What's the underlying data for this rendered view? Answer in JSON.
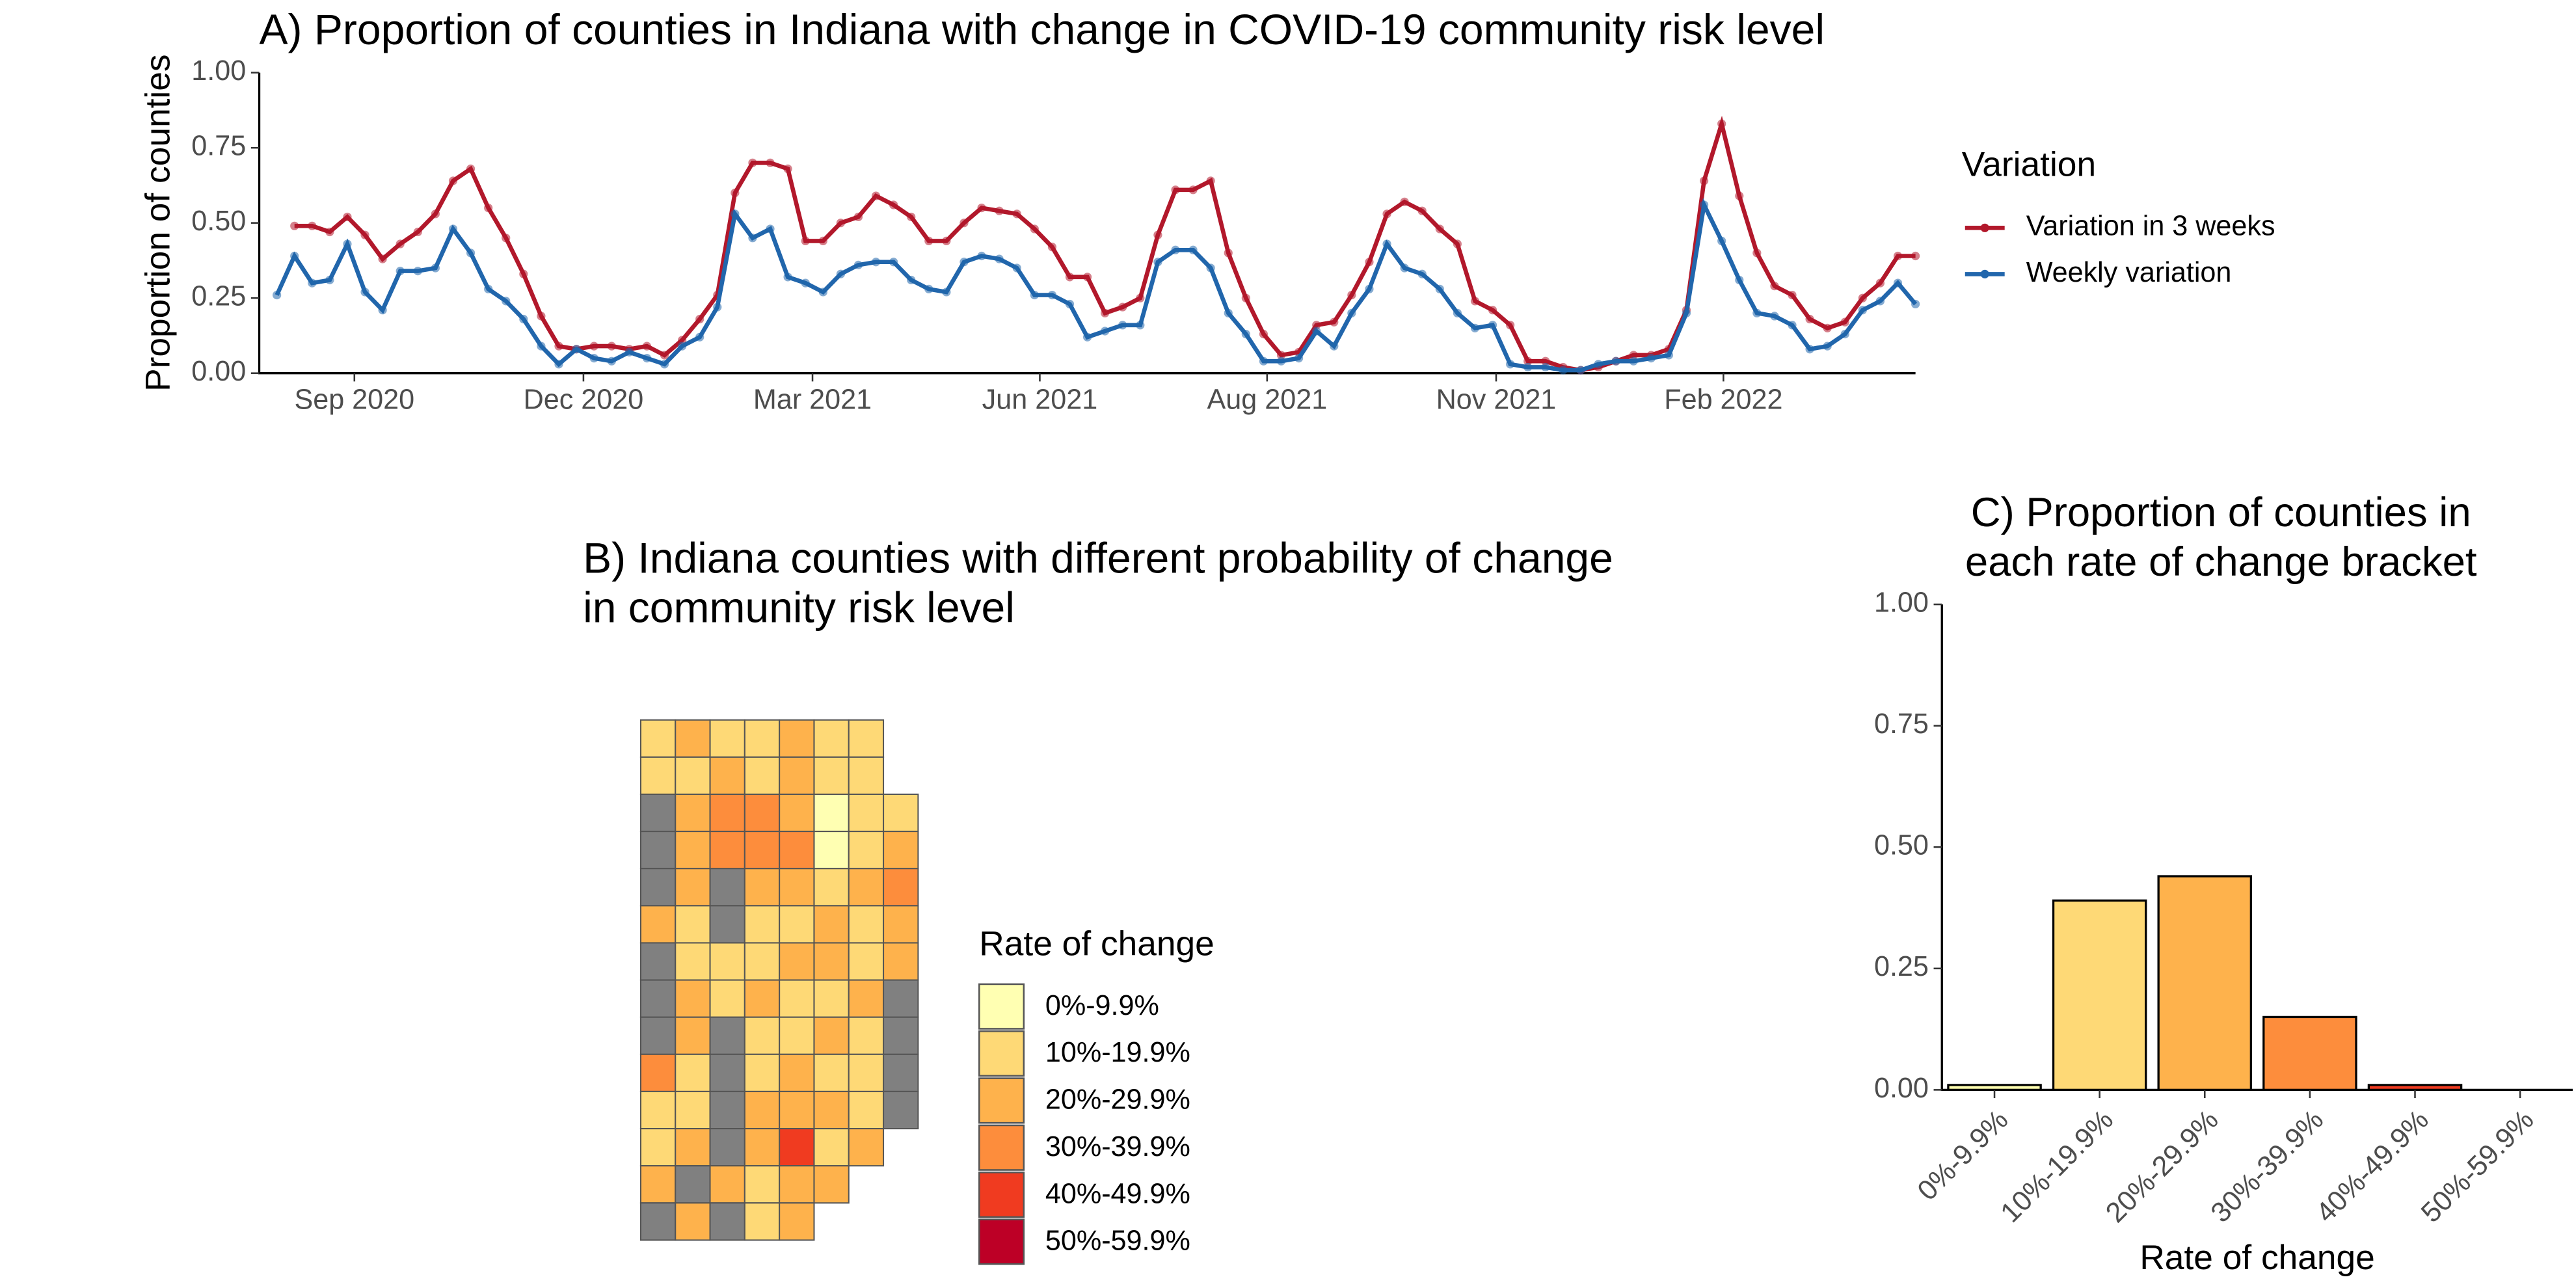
{
  "chart_data": [
    {
      "type": "line",
      "title": "A) Proportion of counties in Indiana with change in COVID-19 community risk level",
      "ylabel": "Proportion of counties",
      "legend_title": "Variation",
      "legend_position": "right",
      "x": [
        0,
        1,
        2,
        3,
        4,
        5,
        6,
        7,
        8,
        9,
        10,
        11,
        12,
        13,
        14,
        15,
        16,
        17,
        18,
        19,
        20,
        21,
        22,
        23,
        24,
        25,
        26,
        27,
        28,
        29,
        30,
        31,
        32,
        33,
        34,
        35,
        36,
        37,
        38,
        39,
        40,
        41,
        42,
        43,
        44,
        45,
        46,
        47,
        48,
        49,
        50,
        51,
        52,
        53,
        54,
        55,
        56,
        57,
        58,
        59,
        60,
        61,
        62,
        63,
        64,
        65,
        66,
        67,
        68,
        69,
        70,
        71,
        72,
        73,
        74,
        75,
        76,
        77,
        78,
        79,
        80,
        81,
        82,
        83,
        84,
        85,
        86,
        87,
        88,
        89,
        90,
        91,
        92,
        93
      ],
      "xlim": [
        -1,
        93
      ],
      "xticks": [
        {
          "value": 4.4,
          "label": "Sep 2020"
        },
        {
          "value": 17.4,
          "label": "Dec 2020"
        },
        {
          "value": 30.4,
          "label": "Mar 2021"
        },
        {
          "value": 43.3,
          "label": "Jun 2021"
        },
        {
          "value": 56.2,
          "label": "Aug 2021"
        },
        {
          "value": 69.2,
          "label": "Nov 2021"
        },
        {
          "value": 82.1,
          "label": "Feb 2022"
        }
      ],
      "ylim": [
        0,
        1
      ],
      "yticks": [
        {
          "value": 0,
          "label": "0.00"
        },
        {
          "value": 0.25,
          "label": "0.25"
        },
        {
          "value": 0.5,
          "label": "0.50"
        },
        {
          "value": 0.75,
          "label": "0.75"
        },
        {
          "value": 1,
          "label": "1.00"
        }
      ],
      "series": [
        {
          "name": "Variation in 3 weeks",
          "color": "#b2182b",
          "values": [
            null,
            0.49,
            0.49,
            0.47,
            0.52,
            0.46,
            0.38,
            0.43,
            0.47,
            0.53,
            0.64,
            0.68,
            0.55,
            0.45,
            0.33,
            0.19,
            0.09,
            0.08,
            0.09,
            0.09,
            0.08,
            0.09,
            0.06,
            0.11,
            0.18,
            0.26,
            0.6,
            0.7,
            0.7,
            0.68,
            0.44,
            0.44,
            0.5,
            0.52,
            0.59,
            0.56,
            0.52,
            0.44,
            0.44,
            0.5,
            0.55,
            0.54,
            0.53,
            0.48,
            0.42,
            0.32,
            0.32,
            0.2,
            0.22,
            0.25,
            0.46,
            0.61,
            0.61,
            0.64,
            0.4,
            0.25,
            0.13,
            0.06,
            0.07,
            0.16,
            0.17,
            0.26,
            0.37,
            0.53,
            0.57,
            0.54,
            0.48,
            0.43,
            0.24,
            0.21,
            0.16,
            0.04,
            0.04,
            0.02,
            0.01,
            0.02,
            0.04,
            0.06,
            0.06,
            0.08,
            0.21,
            0.64,
            0.83,
            0.59,
            0.4,
            0.29,
            0.26,
            0.18,
            0.15,
            0.17,
            0.25,
            0.3,
            0.39,
            0.39
          ]
        },
        {
          "name": "Weekly variation",
          "color": "#2166ac",
          "values": [
            0.26,
            0.39,
            0.3,
            0.31,
            0.43,
            0.27,
            0.21,
            0.34,
            0.34,
            0.35,
            0.48,
            0.4,
            0.28,
            0.24,
            0.18,
            0.09,
            0.03,
            0.08,
            0.05,
            0.04,
            0.07,
            0.05,
            0.03,
            0.09,
            0.12,
            0.22,
            0.53,
            0.45,
            0.48,
            0.32,
            0.3,
            0.27,
            0.33,
            0.36,
            0.37,
            0.37,
            0.31,
            0.28,
            0.27,
            0.37,
            0.39,
            0.38,
            0.35,
            0.26,
            0.26,
            0.23,
            0.12,
            0.14,
            0.16,
            0.16,
            0.37,
            0.41,
            0.41,
            0.35,
            0.2,
            0.13,
            0.04,
            0.04,
            0.05,
            0.14,
            0.09,
            0.2,
            0.28,
            0.43,
            0.35,
            0.33,
            0.28,
            0.2,
            0.15,
            0.16,
            0.03,
            0.02,
            0.02,
            0.01,
            0.01,
            0.03,
            0.04,
            0.04,
            0.05,
            0.06,
            0.2,
            0.56,
            0.44,
            0.31,
            0.2,
            0.19,
            0.16,
            0.08,
            0.09,
            0.13,
            0.21,
            0.24,
            0.3,
            0.23
          ]
        }
      ]
    },
    {
      "type": "map",
      "title": [
        " B)  Indiana counties with different probability of change",
        "in community risk level"
      ],
      "legend_title": "Rate of change",
      "legend_labels": [
        "0%-9.9%",
        "10%-19.9%",
        "20%-29.9%",
        "30%-39.9%",
        "40%-49.9%",
        "50%-59.9%"
      ],
      "colors": [
        "#ffffb2",
        "#fed976",
        "#feb24c",
        "#fd8d3c",
        "#f03b20",
        "#bd0026"
      ],
      "missing_color": "#808080",
      "counties": [
        [
          1,
          2,
          1,
          1,
          2,
          1,
          1
        ],
        [
          1,
          1,
          2,
          1,
          2,
          1,
          1
        ],
        [
          null,
          2,
          3,
          3,
          2,
          0,
          1,
          1
        ],
        [
          null,
          2,
          3,
          3,
          3,
          0,
          1,
          2
        ],
        [
          null,
          2,
          null,
          2,
          2,
          1,
          2,
          3
        ],
        [
          2,
          1,
          null,
          1,
          1,
          2,
          1,
          2
        ],
        [
          null,
          1,
          1,
          1,
          2,
          2,
          1,
          2
        ],
        [
          null,
          2,
          1,
          2,
          1,
          1,
          2,
          null
        ],
        [
          null,
          2,
          null,
          1,
          1,
          2,
          1,
          null
        ],
        [
          3,
          1,
          null,
          1,
          2,
          1,
          1,
          null
        ],
        [
          1,
          1,
          null,
          2,
          2,
          2,
          1,
          null
        ],
        [
          1,
          2,
          null,
          2,
          4,
          1,
          2
        ],
        [
          2,
          null,
          2,
          1,
          2,
          2
        ],
        [
          null,
          2,
          null,
          1,
          2
        ]
      ]
    },
    {
      "type": "bar",
      "title": [
        "C) Proportion of counties in",
        " each rate of change bracket"
      ],
      "xlabel": "Rate of change",
      "categories": [
        "0%-9.9%",
        "10%-19.9%",
        "20%-29.9%",
        "30%-39.9%",
        "40%-49.9%",
        "50%-59.9%"
      ],
      "values": [
        0.01,
        0.39,
        0.44,
        0.15,
        0.01,
        0
      ],
      "colors": [
        "#ffffb2",
        "#fed976",
        "#feb24c",
        "#fd8d3c",
        "#f03b20",
        "#bd0026"
      ],
      "ylim": [
        0,
        1
      ],
      "yticks": [
        {
          "value": 0,
          "label": "0.00"
        },
        {
          "value": 0.25,
          "label": "0.25"
        },
        {
          "value": 0.5,
          "label": "0.50"
        },
        {
          "value": 0.75,
          "label": "0.75"
        },
        {
          "value": 1,
          "label": "1.00"
        }
      ]
    }
  ]
}
